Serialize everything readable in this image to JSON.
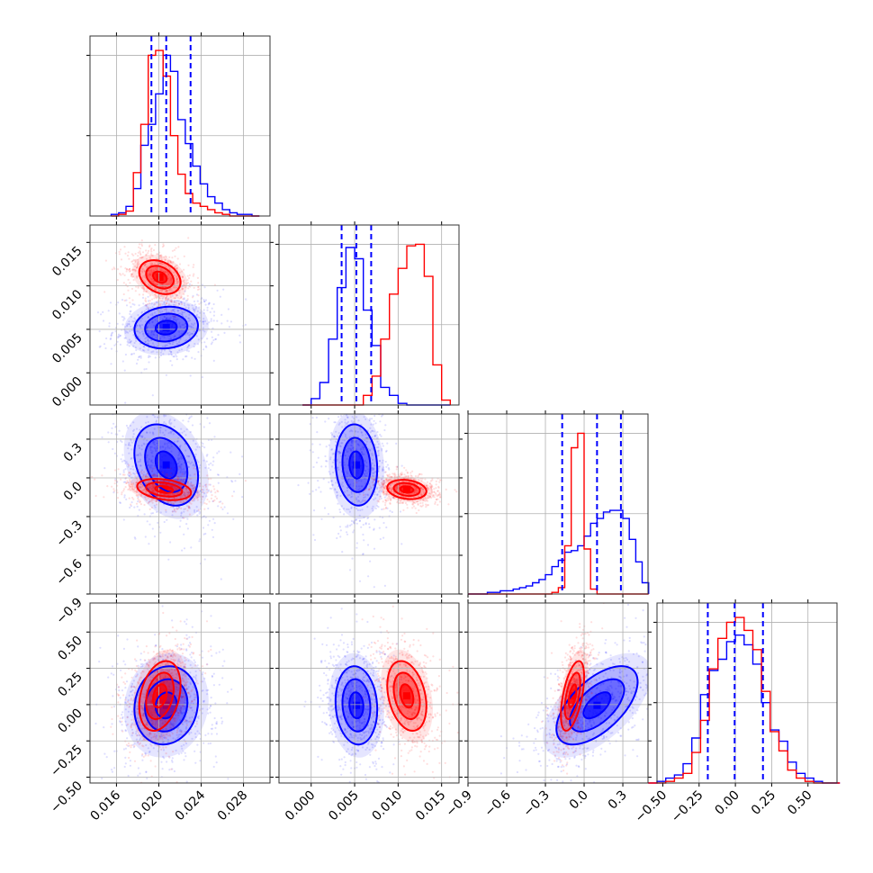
{
  "chart_data": {
    "type": "corner",
    "series": [
      {
        "name": "",
        "color": "#0000ff"
      },
      {
        "name": "",
        "color": "#ff0000"
      }
    ],
    "parameters": [
      {
        "range": [
          0.0135,
          0.0305
        ],
        "ticks": [
          "0.016",
          "0.020",
          "0.024",
          "0.028"
        ],
        "tick_values": [
          0.016,
          0.02,
          0.024,
          0.028
        ],
        "quantiles_series0": [
          0.0193,
          0.0207,
          0.023
        ]
      },
      {
        "range": [
          -0.0037,
          0.017
        ],
        "ticks": [
          "0.000",
          "0.005",
          "0.010",
          "0.015"
        ],
        "tick_values": [
          0.0,
          0.005,
          0.01,
          0.015
        ],
        "quantiles_series0": [
          0.0035,
          0.0052,
          0.0069
        ]
      },
      {
        "range": [
          -0.9,
          0.495
        ],
        "ticks": [
          "−0.9",
          "−0.6",
          "−0.3",
          "0.0",
          "0.3"
        ],
        "tick_values": [
          -0.9,
          -0.6,
          -0.3,
          0.0,
          0.3
        ],
        "quantiles_series0": [
          -0.17,
          0.1,
          0.285
        ]
      },
      {
        "range": [
          -0.54,
          0.7
        ],
        "ticks": [
          "−0.50",
          "−0.25",
          "0.00",
          "0.25",
          "0.50"
        ],
        "tick_values": [
          -0.5,
          -0.25,
          0.0,
          0.25,
          0.5
        ],
        "quantiles_series0": [
          -0.19,
          -0.005,
          0.19
        ]
      }
    ],
    "histograms": [
      {
        "edges": [
          0.0155,
          0.0162,
          0.0169,
          0.0176,
          0.0183,
          0.019,
          0.0197,
          0.0204,
          0.0211,
          0.0218,
          0.0225,
          0.0232,
          0.0239,
          0.0246,
          0.0253,
          0.026,
          0.0267,
          0.0274,
          0.0281,
          0.0288,
          0.0295
        ],
        "series0": [
          0.01,
          0.02,
          0.06,
          0.17,
          0.44,
          0.57,
          0.76,
          1.0,
          0.9,
          0.6,
          0.45,
          0.31,
          0.2,
          0.12,
          0.08,
          0.04,
          0.02,
          0.01,
          0.01,
          0.0
        ],
        "series1": [
          0.0,
          0.01,
          0.03,
          0.27,
          0.57,
          1.0,
          1.03,
          0.87,
          0.5,
          0.26,
          0.14,
          0.08,
          0.06,
          0.04,
          0.02,
          0.01,
          0.0,
          0.0,
          0.0,
          0.0
        ]
      },
      {
        "edges": [
          -0.001,
          0.0,
          0.001,
          0.002,
          0.003,
          0.004,
          0.005,
          0.006,
          0.007,
          0.008,
          0.009,
          0.01,
          0.011,
          0.012,
          0.013,
          0.014,
          0.015,
          0.016
        ],
        "series0": [
          0.0,
          0.04,
          0.14,
          0.41,
          0.73,
          0.98,
          0.91,
          0.59,
          0.37,
          0.11,
          0.06,
          0.01,
          0.0,
          0.0,
          0.0,
          0.0,
          0.0
        ],
        "series1": [
          0.0,
          0.0,
          0.0,
          0.0,
          0.0,
          0.0,
          0.0,
          0.06,
          0.18,
          0.41,
          0.69,
          0.85,
          0.99,
          1.0,
          0.8,
          0.25,
          0.03
        ]
      },
      {
        "edges": [
          -0.9,
          -0.85,
          -0.8,
          -0.75,
          -0.7,
          -0.65,
          -0.6,
          -0.55,
          -0.5,
          -0.45,
          -0.4,
          -0.35,
          -0.3,
          -0.25,
          -0.2,
          -0.15,
          -0.1,
          -0.05,
          0.0,
          0.05,
          0.1,
          0.15,
          0.2,
          0.25,
          0.3,
          0.35,
          0.4,
          0.45,
          0.5
        ],
        "series0": [
          0.0,
          0.0,
          0.0,
          0.01,
          0.01,
          0.02,
          0.02,
          0.03,
          0.04,
          0.05,
          0.07,
          0.09,
          0.12,
          0.17,
          0.21,
          0.26,
          0.27,
          0.3,
          0.36,
          0.44,
          0.47,
          0.51,
          0.52,
          0.52,
          0.47,
          0.34,
          0.2,
          0.07
        ],
        "series1": [
          0.0,
          0.0,
          0.0,
          0.0,
          0.0,
          0.0,
          0.0,
          0.0,
          0.0,
          0.0,
          0.0,
          0.0,
          0.0,
          0.01,
          0.04,
          0.3,
          0.91,
          1.0,
          0.28,
          0.03,
          0.0,
          0.0,
          0.0,
          0.0,
          0.0,
          0.0,
          0.0,
          0.0
        ]
      },
      {
        "edges": [
          -0.6,
          -0.54,
          -0.48,
          -0.42,
          -0.36,
          -0.3,
          -0.24,
          -0.18,
          -0.12,
          -0.06,
          0.0,
          0.06,
          0.12,
          0.18,
          0.24,
          0.3,
          0.36,
          0.42,
          0.48,
          0.54,
          0.6,
          0.66,
          0.72
        ],
        "series0": [
          0.0,
          0.01,
          0.03,
          0.05,
          0.12,
          0.28,
          0.55,
          0.7,
          0.77,
          0.88,
          0.92,
          0.86,
          0.74,
          0.5,
          0.33,
          0.26,
          0.13,
          0.06,
          0.03,
          0.01,
          0.0,
          0.0
        ],
        "series1": [
          0.0,
          0.0,
          0.01,
          0.03,
          0.06,
          0.19,
          0.39,
          0.71,
          0.9,
          1.0,
          1.03,
          0.95,
          0.83,
          0.57,
          0.32,
          0.2,
          0.08,
          0.03,
          0.01,
          0.0,
          0.0,
          0.0
        ]
      }
    ],
    "pairs": [
      {
        "x": 0,
        "y": 1,
        "series0": {
          "mean": [
            0.0207,
            0.0052
          ],
          "sd": [
            0.002,
            0.0016
          ],
          "rho": 0.1
        },
        "series1": {
          "mean": [
            0.0201,
            0.011
          ],
          "sd": [
            0.0013,
            0.0013
          ],
          "rho": -0.3
        }
      },
      {
        "x": 0,
        "y": 2,
        "series0": {
          "mean": [
            0.0207,
            0.1
          ],
          "sd": [
            0.002,
            0.21
          ],
          "rho": -0.3
        },
        "series1": {
          "mean": [
            0.0205,
            -0.09
          ],
          "sd": [
            0.0017,
            0.055
          ],
          "rho": -0.3
        }
      },
      {
        "x": 1,
        "y": 2,
        "series0": {
          "mean": [
            0.0052,
            0.1
          ],
          "sd": [
            0.0016,
            0.21
          ],
          "rho": -0.1
        },
        "series1": {
          "mean": [
            0.011,
            -0.09
          ],
          "sd": [
            0.0015,
            0.05
          ],
          "rho": -0.2
        }
      },
      {
        "x": 0,
        "y": 3,
        "series0": {
          "mean": [
            0.0207,
            -0.005
          ],
          "sd": [
            0.002,
            0.18
          ],
          "rho": 0.1
        },
        "series1": {
          "mean": [
            0.0201,
            0.06
          ],
          "sd": [
            0.0013,
            0.16
          ],
          "rho": 0.3
        }
      },
      {
        "x": 1,
        "y": 3,
        "series0": {
          "mean": [
            0.0052,
            -0.005
          ],
          "sd": [
            0.0016,
            0.18
          ],
          "rho": -0.1
        },
        "series1": {
          "mean": [
            0.011,
            0.06
          ],
          "sd": [
            0.0015,
            0.16
          ],
          "rho": -0.3
        }
      },
      {
        "x": 2,
        "y": 3,
        "series0": {
          "mean": [
            0.1,
            -0.005
          ],
          "sd": [
            0.21,
            0.18
          ],
          "rho": 0.6
        },
        "series1": {
          "mean": [
            -0.09,
            0.06
          ],
          "sd": [
            0.06,
            0.16
          ],
          "rho": 0.55
        }
      }
    ],
    "contour_levels_sigma": [
      0.5,
      1.0,
      1.5,
      2.0
    ],
    "grid": true,
    "legend": "none",
    "title": "",
    "xlabel": "",
    "ylabel": ""
  }
}
